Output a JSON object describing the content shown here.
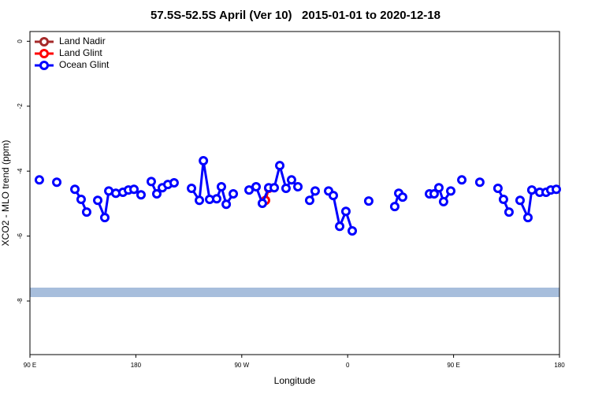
{
  "chart_data": {
    "type": "line",
    "title": "57.5S-52.5S April (Ver 10)   2015-01-01 to 2020-12-18",
    "xlabel": "Longitude",
    "ylabel": "XCO2 - MLO trend (ppm)",
    "xlim": [
      90,
      540
    ],
    "ylim": [
      -9.65,
      0.3
    ],
    "xticks": [
      {
        "value": 90,
        "label": "90 E"
      },
      180,
      {
        "value": 270,
        "label": "90 W"
      },
      {
        "value": 360,
        "label": "0"
      },
      {
        "value": 450,
        "label": "90 E"
      },
      {
        "value": 540,
        "label": "180"
      }
    ],
    "yticks": [
      0,
      -2,
      -4,
      -6,
      -8
    ],
    "legend": "top-left",
    "series": [
      {
        "name": "Land Nadir",
        "color": "#a52a2a",
        "x": [],
        "values": []
      },
      {
        "name": "Land Glint",
        "color": "#ff0000",
        "x": [
          290.2,
          292.9
        ],
        "values": [
          -4.9,
          -4.53
        ]
      },
      {
        "name": "Ocean Glint",
        "color": "#0000ff",
        "x": [
          98,
          null,
          112.8,
          null,
          128.2,
          133.5,
          138.2,
          null,
          147.6,
          153.6,
          157,
          163,
          169,
          173.7,
          178.4,
          184.4,
          null,
          193.1,
          197.8,
          202.5,
          207.2,
          212.5,
          null,
          227.3,
          234,
          237.4,
          242.7,
          248.7,
          252.7,
          256.8,
          262.8,
          null,
          276.2,
          282.2,
          287.5,
          292.9,
          297.6,
          302.3,
          307.6,
          312.3,
          317.7,
          null,
          327.7,
          332.4,
          null,
          343.8,
          347.8,
          353.2,
          358.5,
          363.9,
          null,
          377.9,
          null,
          400,
          403.4,
          406.7,
          null,
          429.5,
          433.5,
          437.5,
          441.5,
          447.6,
          null,
          457,
          null,
          472.3,
          null,
          487.7,
          492.4,
          497.1,
          null,
          506.5,
          513.2,
          516.5,
          523.2,
          528.6,
          532.6,
          537.3
        ],
        "values": [
          -4.27,
          null,
          -4.34,
          null,
          -4.56,
          -4.87,
          -5.26,
          null,
          -4.9,
          -5.43,
          -4.61,
          -4.68,
          -4.65,
          -4.58,
          -4.56,
          -4.73,
          null,
          -4.32,
          -4.7,
          -4.51,
          -4.41,
          -4.36,
          null,
          -4.53,
          -4.9,
          -3.68,
          -4.87,
          -4.85,
          -4.48,
          -5.02,
          -4.7,
          null,
          -4.58,
          -4.48,
          -4.99,
          -4.51,
          -4.51,
          -3.83,
          -4.53,
          -4.27,
          -4.48,
          null,
          -4.9,
          -4.61,
          null,
          -4.61,
          -4.75,
          -5.7,
          -5.24,
          -5.84,
          null,
          -4.92,
          null,
          -5.09,
          -4.68,
          -4.8,
          null,
          -4.7,
          -4.7,
          -4.51,
          -4.94,
          -4.61,
          null,
          -4.27,
          null,
          -4.34,
          null,
          -4.53,
          -4.87,
          -5.26,
          null,
          -4.9,
          -5.43,
          -4.58,
          -4.65,
          -4.65,
          -4.58,
          -4.56
        ]
      }
    ]
  }
}
